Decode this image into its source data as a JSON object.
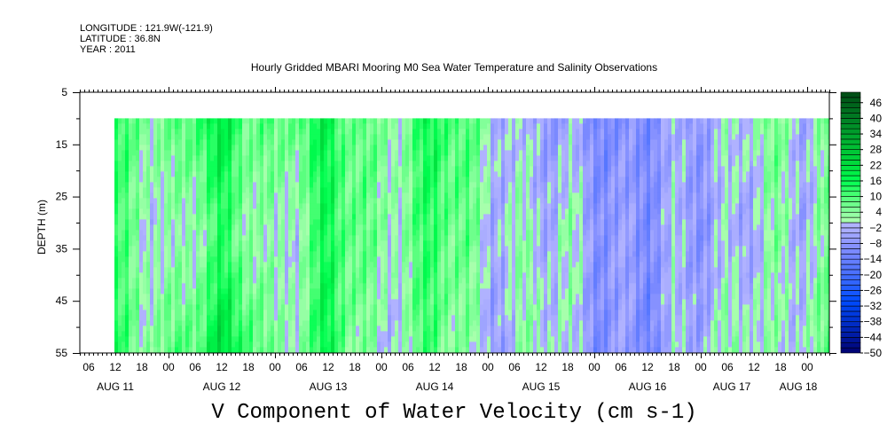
{
  "header": {
    "longitude": "LONGITUDE : 121.9W(-121.9)",
    "latitude": "LATITUDE : 36.8N",
    "year": "YEAR : 2011"
  },
  "chart_data": {
    "type": "heatmap",
    "title": "Hourly Gridded MBARI Mooring M0 Sea Water Temperature and Salinity Observations",
    "xlabel": "V Component of Water Velocity (cm s-1)",
    "ylabel": "DEPTH (m)",
    "ylim": [
      5,
      55
    ],
    "y_ticks": [
      "5",
      "15",
      "25",
      "35",
      "45",
      "55"
    ],
    "x_range_hours_from_aug11_00": [
      4,
      149
    ],
    "x_hour_ticks": [
      "06",
      "12",
      "18",
      "00",
      "06",
      "12",
      "18",
      "00",
      "06",
      "12",
      "18",
      "00",
      "06",
      "12",
      "18",
      "00",
      "06",
      "12",
      "18",
      "00",
      "06",
      "12",
      "18",
      "00",
      "06",
      "12",
      "18",
      "00"
    ],
    "x_day_labels": [
      "AUG 11",
      "AUG 12",
      "AUG 13",
      "AUG 14",
      "AUG 15",
      "AUG 16",
      "AUG 17",
      "AUG 18"
    ],
    "colorbar": {
      "min": -50,
      "max": 50,
      "step": 2,
      "labels": [
        "46",
        "40",
        "34",
        "28",
        "22",
        "16",
        "10",
        "4",
        "-2",
        "-8",
        "-14",
        "-20",
        "-26",
        "-32",
        "-38",
        "-44",
        "-50"
      ]
    },
    "data_depths": [
      10,
      32.5,
      55
    ],
    "data_hours_from_aug11_00": [
      12,
      18,
      24,
      30,
      36,
      42,
      48,
      54,
      60,
      66,
      72,
      78,
      84,
      90,
      96,
      102,
      108,
      114,
      120,
      126,
      132,
      138,
      144,
      150,
      156,
      162,
      168,
      173
    ],
    "values": [
      [
        10,
        8,
        4,
        14,
        18,
        10,
        6,
        12,
        16,
        8,
        4,
        6,
        16,
        10,
        2,
        -4,
        -4,
        -6,
        -8,
        -12,
        -8,
        -6,
        -4,
        -2,
        4,
        4,
        -2,
        4
      ],
      [
        8,
        4,
        -2,
        4,
        10,
        6,
        -2,
        4,
        14,
        10,
        2,
        6,
        12,
        8,
        -2,
        2,
        -2,
        2,
        -6,
        -8,
        -8,
        -4,
        -6,
        -4,
        -2,
        2,
        -2,
        4
      ],
      [
        10,
        6,
        6,
        12,
        20,
        14,
        2,
        6,
        16,
        6,
        -2,
        4,
        10,
        4,
        -4,
        -2,
        4,
        -2,
        -8,
        -8,
        -10,
        -4,
        -2,
        2,
        4,
        -2,
        4,
        6
      ]
    ]
  }
}
